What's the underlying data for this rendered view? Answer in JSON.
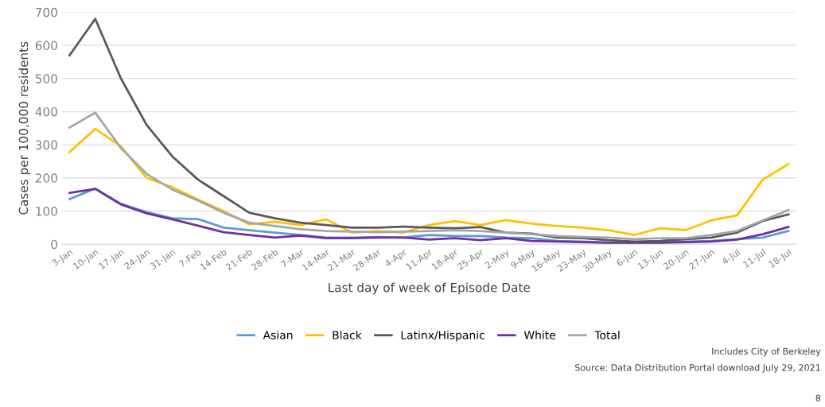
{
  "chart_data": {
    "type": "line",
    "xlabel": "Last day of week of Episode Date",
    "ylabel": "Cases per 100,000 residents",
    "categories": [
      "3-Jan",
      "10-Jan",
      "17-Jan",
      "24-Jan",
      "31-Jan",
      "7-Feb",
      "14-Feb",
      "21-Feb",
      "28-Feb",
      "7-Mar",
      "14-Mar",
      "21-Mar",
      "28-Mar",
      "4-Apr",
      "11-Apr",
      "18-Apr",
      "25-Apr",
      "2-May",
      "9-May",
      "16-May",
      "23-May",
      "30-May",
      "6-Jun",
      "13-Jun",
      "20-Jun",
      "27-Jun",
      "4-Jul",
      "11-Jul",
      "18-Jul"
    ],
    "series": [
      {
        "name": "Asian",
        "color": "#5b9bd5",
        "values": [
          136,
          168,
          122,
          97,
          78,
          76,
          50,
          42,
          35,
          28,
          20,
          20,
          22,
          20,
          28,
          25,
          25,
          20,
          18,
          10,
          8,
          5,
          5,
          5,
          8,
          10,
          15,
          20,
          40
        ]
      },
      {
        "name": "Black",
        "color": "#ffc000",
        "values": [
          278,
          348,
          295,
          200,
          172,
          135,
          100,
          60,
          68,
          58,
          75,
          35,
          40,
          35,
          58,
          70,
          58,
          73,
          62,
          55,
          50,
          42,
          28,
          48,
          43,
          72,
          87,
          195,
          242
        ]
      },
      {
        "name": "Latinx/Hispanic",
        "color": "#595959",
        "values": [
          570,
          680,
          500,
          360,
          265,
          195,
          145,
          95,
          78,
          65,
          58,
          50,
          50,
          53,
          50,
          48,
          52,
          35,
          32,
          20,
          18,
          12,
          8,
          10,
          15,
          20,
          35,
          70,
          90
        ]
      },
      {
        "name": "White",
        "color": "#7030a0",
        "values": [
          155,
          167,
          120,
          93,
          75,
          56,
          36,
          28,
          20,
          26,
          18,
          18,
          20,
          20,
          14,
          18,
          12,
          18,
          10,
          8,
          6,
          4,
          4,
          4,
          6,
          8,
          14,
          30,
          52
        ]
      },
      {
        "name": "Total",
        "color": "#a5a5a5",
        "values": [
          352,
          397,
          290,
          212,
          165,
          132,
          95,
          65,
          55,
          45,
          40,
          38,
          36,
          38,
          40,
          42,
          40,
          35,
          30,
          25,
          22,
          20,
          15,
          18,
          18,
          28,
          40,
          72,
          103
        ]
      }
    ],
    "ylim": [
      0,
      700
    ],
    "yticks": [
      0,
      100,
      200,
      300,
      400,
      500,
      600,
      700
    ],
    "grid": "y",
    "legend": "bottom",
    "marker": "none",
    "line_style": "solid",
    "annotations": [
      "Includes City of Berkeley",
      "Source: Data Distribution Portal download July 29, 2021",
      "8"
    ]
  }
}
